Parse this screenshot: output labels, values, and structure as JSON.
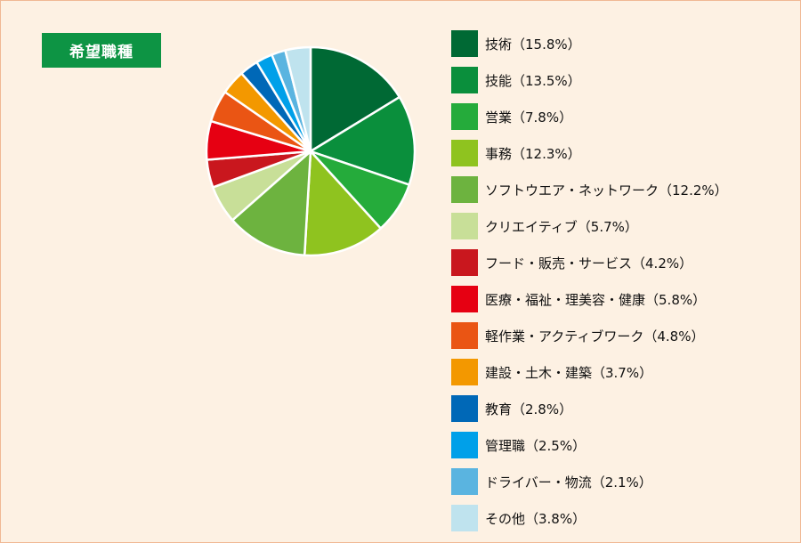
{
  "title": "希望職種",
  "chart_data": {
    "type": "pie",
    "start_angle": "12 o'clock",
    "direction": "clockwise",
    "slices": [
      {
        "label": "技術（15.8%）",
        "value": 15.8,
        "color": "#006934"
      },
      {
        "label": "技能（13.5%）",
        "value": 13.5,
        "color": "#0a8f3c"
      },
      {
        "label": "営業（7.8%）",
        "value": 7.8,
        "color": "#25ab3b"
      },
      {
        "label": "事務（12.3%）",
        "value": 12.3,
        "color": "#8fc31f"
      },
      {
        "label": "ソフトウエア・ネットワーク（12.2%）",
        "value": 12.2,
        "color": "#6db33f"
      },
      {
        "label": "クリエイティブ（5.7%）",
        "value": 5.7,
        "color": "#c8df98"
      },
      {
        "label": "フード・販売・サービス（4.2%）",
        "value": 4.2,
        "color": "#c9171e"
      },
      {
        "label": "医療・福祉・理美容・健康（5.8%）",
        "value": 5.8,
        "color": "#e60012"
      },
      {
        "label": "軽作業・アクティブワーク（4.8%）",
        "value": 4.8,
        "color": "#ea5514"
      },
      {
        "label": "建設・土木・建築（3.7%）",
        "value": 3.7,
        "color": "#f39800"
      },
      {
        "label": "教育（2.8%）",
        "value": 2.8,
        "color": "#0068b7"
      },
      {
        "label": "管理職（2.5%）",
        "value": 2.5,
        "color": "#00a0e9"
      },
      {
        "label": "ドライバー・物流（2.1%）",
        "value": 2.1,
        "color": "#5ab4e0"
      },
      {
        "label": "その他（3.8%）",
        "value": 3.8,
        "color": "#bfe3ee"
      }
    ],
    "legend_position": "right"
  }
}
